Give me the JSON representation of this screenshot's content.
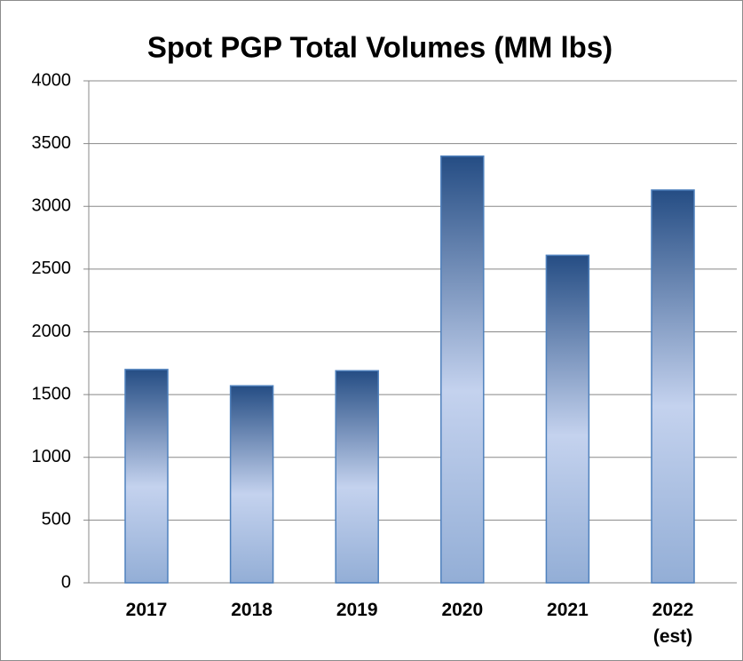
{
  "chart_data": {
    "type": "bar",
    "title": "Spot PGP Total Volumes (MM lbs)",
    "categories": [
      "2017",
      "2018",
      "2019",
      "2020",
      "2021",
      "2022 (est)"
    ],
    "values": [
      1700,
      1570,
      1690,
      3400,
      2610,
      3130
    ],
    "color": "#4f81bd",
    "ylim": [
      0,
      4000
    ],
    "yticks": [
      0,
      500,
      1000,
      1500,
      2000,
      2500,
      3000,
      3500,
      4000
    ],
    "grid": true
  }
}
